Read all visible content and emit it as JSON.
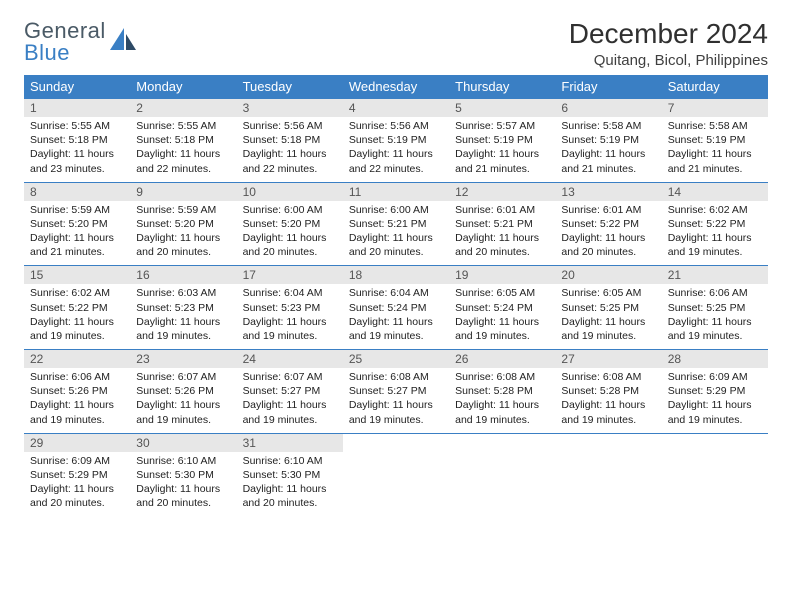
{
  "brand": {
    "line1": "General",
    "line2": "Blue"
  },
  "title": "December 2024",
  "location": "Quitang, Bicol, Philippines",
  "colors": {
    "header_bg": "#3a7fc4",
    "header_text": "#ffffff",
    "daynum_bg": "#e7e7e7",
    "border": "#3a7fc4",
    "logo_gray": "#4a5a66",
    "logo_blue": "#3a7fc4"
  },
  "weekdays": [
    "Sunday",
    "Monday",
    "Tuesday",
    "Wednesday",
    "Thursday",
    "Friday",
    "Saturday"
  ],
  "days": [
    {
      "n": "1",
      "sr": "5:55 AM",
      "ss": "5:18 PM",
      "dl": "11 hours and 23 minutes."
    },
    {
      "n": "2",
      "sr": "5:55 AM",
      "ss": "5:18 PM",
      "dl": "11 hours and 22 minutes."
    },
    {
      "n": "3",
      "sr": "5:56 AM",
      "ss": "5:18 PM",
      "dl": "11 hours and 22 minutes."
    },
    {
      "n": "4",
      "sr": "5:56 AM",
      "ss": "5:19 PM",
      "dl": "11 hours and 22 minutes."
    },
    {
      "n": "5",
      "sr": "5:57 AM",
      "ss": "5:19 PM",
      "dl": "11 hours and 21 minutes."
    },
    {
      "n": "6",
      "sr": "5:58 AM",
      "ss": "5:19 PM",
      "dl": "11 hours and 21 minutes."
    },
    {
      "n": "7",
      "sr": "5:58 AM",
      "ss": "5:19 PM",
      "dl": "11 hours and 21 minutes."
    },
    {
      "n": "8",
      "sr": "5:59 AM",
      "ss": "5:20 PM",
      "dl": "11 hours and 21 minutes."
    },
    {
      "n": "9",
      "sr": "5:59 AM",
      "ss": "5:20 PM",
      "dl": "11 hours and 20 minutes."
    },
    {
      "n": "10",
      "sr": "6:00 AM",
      "ss": "5:20 PM",
      "dl": "11 hours and 20 minutes."
    },
    {
      "n": "11",
      "sr": "6:00 AM",
      "ss": "5:21 PM",
      "dl": "11 hours and 20 minutes."
    },
    {
      "n": "12",
      "sr": "6:01 AM",
      "ss": "5:21 PM",
      "dl": "11 hours and 20 minutes."
    },
    {
      "n": "13",
      "sr": "6:01 AM",
      "ss": "5:22 PM",
      "dl": "11 hours and 20 minutes."
    },
    {
      "n": "14",
      "sr": "6:02 AM",
      "ss": "5:22 PM",
      "dl": "11 hours and 19 minutes."
    },
    {
      "n": "15",
      "sr": "6:02 AM",
      "ss": "5:22 PM",
      "dl": "11 hours and 19 minutes."
    },
    {
      "n": "16",
      "sr": "6:03 AM",
      "ss": "5:23 PM",
      "dl": "11 hours and 19 minutes."
    },
    {
      "n": "17",
      "sr": "6:04 AM",
      "ss": "5:23 PM",
      "dl": "11 hours and 19 minutes."
    },
    {
      "n": "18",
      "sr": "6:04 AM",
      "ss": "5:24 PM",
      "dl": "11 hours and 19 minutes."
    },
    {
      "n": "19",
      "sr": "6:05 AM",
      "ss": "5:24 PM",
      "dl": "11 hours and 19 minutes."
    },
    {
      "n": "20",
      "sr": "6:05 AM",
      "ss": "5:25 PM",
      "dl": "11 hours and 19 minutes."
    },
    {
      "n": "21",
      "sr": "6:06 AM",
      "ss": "5:25 PM",
      "dl": "11 hours and 19 minutes."
    },
    {
      "n": "22",
      "sr": "6:06 AM",
      "ss": "5:26 PM",
      "dl": "11 hours and 19 minutes."
    },
    {
      "n": "23",
      "sr": "6:07 AM",
      "ss": "5:26 PM",
      "dl": "11 hours and 19 minutes."
    },
    {
      "n": "24",
      "sr": "6:07 AM",
      "ss": "5:27 PM",
      "dl": "11 hours and 19 minutes."
    },
    {
      "n": "25",
      "sr": "6:08 AM",
      "ss": "5:27 PM",
      "dl": "11 hours and 19 minutes."
    },
    {
      "n": "26",
      "sr": "6:08 AM",
      "ss": "5:28 PM",
      "dl": "11 hours and 19 minutes."
    },
    {
      "n": "27",
      "sr": "6:08 AM",
      "ss": "5:28 PM",
      "dl": "11 hours and 19 minutes."
    },
    {
      "n": "28",
      "sr": "6:09 AM",
      "ss": "5:29 PM",
      "dl": "11 hours and 19 minutes."
    },
    {
      "n": "29",
      "sr": "6:09 AM",
      "ss": "5:29 PM",
      "dl": "11 hours and 20 minutes."
    },
    {
      "n": "30",
      "sr": "6:10 AM",
      "ss": "5:30 PM",
      "dl": "11 hours and 20 minutes."
    },
    {
      "n": "31",
      "sr": "6:10 AM",
      "ss": "5:30 PM",
      "dl": "11 hours and 20 minutes."
    }
  ],
  "labels": {
    "sunrise": "Sunrise:",
    "sunset": "Sunset:",
    "daylight": "Daylight:"
  }
}
